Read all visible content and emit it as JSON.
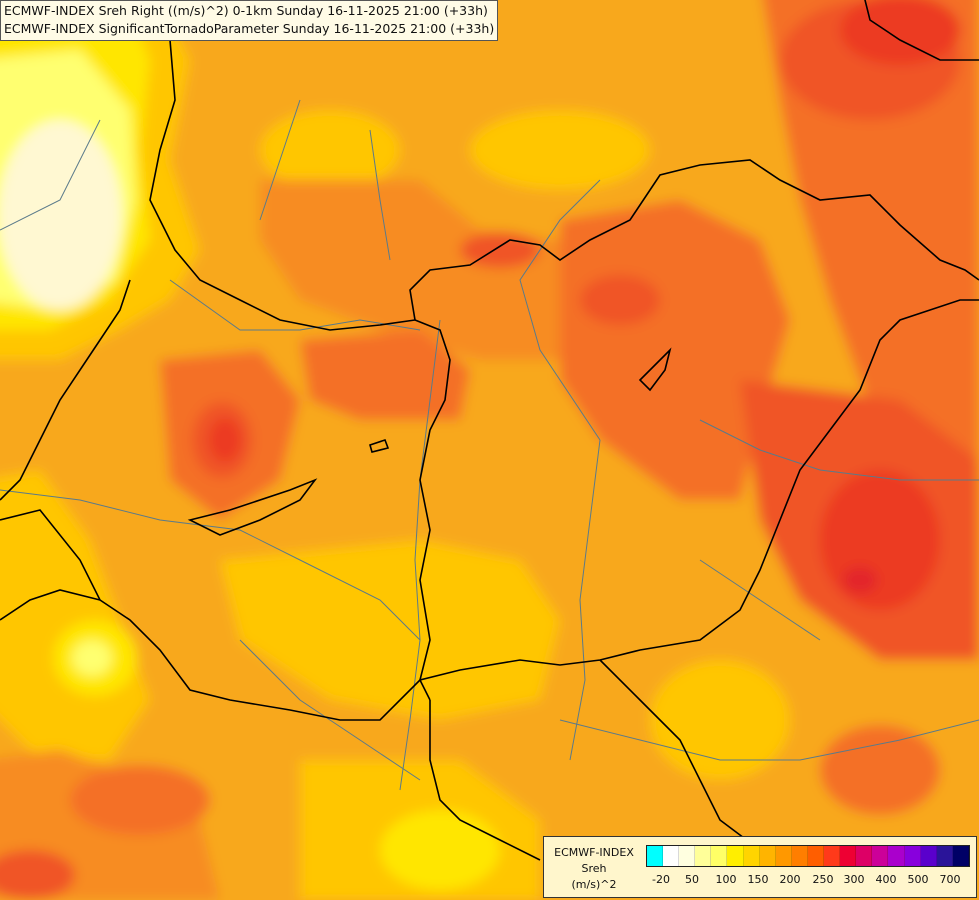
{
  "title": {
    "line1": "ECMWF-INDEX Sreh Right ((m/s)^2) 0-1km Sunday 16-11-2025 21:00 (+33h)",
    "line2": "ECMWF-INDEX SignificantTornadoParameter Sunday 16-11-2025 21:00 (+33h)"
  },
  "legend": {
    "model": "ECMWF-INDEX",
    "variable": "Sreh",
    "unit": "(m/s)^2",
    "colors": [
      "#00ffff",
      "#ffffff",
      "#ffffe0",
      "#ffff99",
      "#ffff66",
      "#ffee00",
      "#ffd400",
      "#ffb400",
      "#ff9800",
      "#ff7e00",
      "#ff5e00",
      "#ff3a1a",
      "#ee0033",
      "#dd0066",
      "#cc0099",
      "#aa00cc",
      "#8800dd",
      "#5a00cc",
      "#2a1499",
      "#000066"
    ],
    "tick_labels": [
      "-20",
      "50",
      "100",
      "150",
      "200",
      "250",
      "300",
      "400",
      "500",
      "700"
    ]
  },
  "field_colors": {
    "pale": "#fff8d2",
    "light_yellow": "#ffff70",
    "yellow": "#ffe600",
    "gold": "#ffc600",
    "orange_light": "#f8a81a",
    "orange": "#f78c20",
    "orange_dark": "#f47028",
    "red_orange": "#f05428",
    "red": "#ec3a22",
    "deep_red": "#e3262a"
  },
  "map_lines": {
    "border_color": "#000000",
    "river_color": "#5a7a8a"
  }
}
